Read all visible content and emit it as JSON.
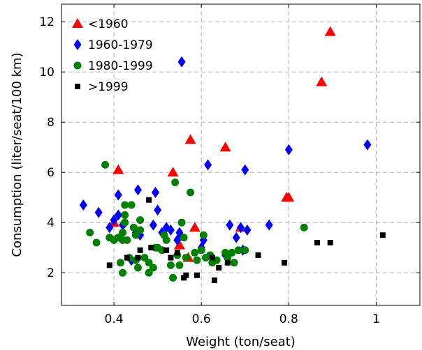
{
  "chart_data": {
    "type": "scatter",
    "title": "",
    "xlabel": "Weight (ton/seat)",
    "ylabel": "Consumption (liter/seat/100 km)",
    "xlim": [
      0.28,
      1.1
    ],
    "ylim": [
      0.7,
      12.7
    ],
    "xticks": [
      0.4,
      0.6,
      0.8,
      1.0
    ],
    "xtick_labels": [
      "0.4",
      "0.6",
      "0.8",
      "1"
    ],
    "yticks": [
      2,
      4,
      6,
      8,
      10,
      12
    ],
    "ytick_labels": [
      "2",
      "4",
      "6",
      "8",
      "10",
      "12"
    ],
    "grid": true,
    "legend_position": "top-left",
    "series": [
      {
        "name": "<1960",
        "marker": "triangle",
        "color": "#ff0000",
        "points": [
          [
            0.4,
            4.0
          ],
          [
            0.41,
            6.1
          ],
          [
            0.535,
            6.0
          ],
          [
            0.55,
            3.1
          ],
          [
            0.575,
            7.3
          ],
          [
            0.585,
            3.8
          ],
          [
            0.57,
            2.6
          ],
          [
            0.655,
            7.0
          ],
          [
            0.69,
            3.8
          ],
          [
            0.795,
            5.0
          ],
          [
            0.8,
            5.0
          ],
          [
            0.875,
            9.6
          ],
          [
            0.895,
            11.6
          ]
        ]
      },
      {
        "name": "1960-1979",
        "marker": "diamond",
        "color": "#0000ff",
        "points": [
          [
            0.33,
            4.7
          ],
          [
            0.365,
            4.4
          ],
          [
            0.39,
            3.8
          ],
          [
            0.4,
            4.1
          ],
          [
            0.41,
            5.1
          ],
          [
            0.41,
            4.3
          ],
          [
            0.42,
            3.9
          ],
          [
            0.425,
            4.0
          ],
          [
            0.44,
            2.5
          ],
          [
            0.45,
            3.6
          ],
          [
            0.455,
            5.3
          ],
          [
            0.46,
            3.5
          ],
          [
            0.49,
            3.9
          ],
          [
            0.495,
            5.2
          ],
          [
            0.5,
            4.5
          ],
          [
            0.51,
            3.6
          ],
          [
            0.52,
            3.8
          ],
          [
            0.53,
            3.7
          ],
          [
            0.545,
            3.3
          ],
          [
            0.55,
            3.6
          ],
          [
            0.555,
            10.4
          ],
          [
            0.6,
            3.0
          ],
          [
            0.605,
            3.3
          ],
          [
            0.615,
            6.3
          ],
          [
            0.655,
            2.7
          ],
          [
            0.665,
            3.9
          ],
          [
            0.68,
            3.4
          ],
          [
            0.69,
            3.8
          ],
          [
            0.695,
            2.9
          ],
          [
            0.7,
            6.1
          ],
          [
            0.705,
            3.7
          ],
          [
            0.755,
            3.9
          ],
          [
            0.8,
            6.9
          ],
          [
            0.98,
            7.1
          ]
        ]
      },
      {
        "name": "1980-1999",
        "marker": "circle",
        "color": "#008000",
        "points": [
          [
            0.345,
            3.6
          ],
          [
            0.36,
            3.2
          ],
          [
            0.38,
            6.3
          ],
          [
            0.39,
            3.4
          ],
          [
            0.4,
            3.3
          ],
          [
            0.41,
            3.4
          ],
          [
            0.415,
            2.4
          ],
          [
            0.42,
            2.0
          ],
          [
            0.42,
            3.3
          ],
          [
            0.42,
            3.6
          ],
          [
            0.425,
            4.0
          ],
          [
            0.425,
            4.3
          ],
          [
            0.425,
            4.7
          ],
          [
            0.43,
            3.3
          ],
          [
            0.435,
            2.6
          ],
          [
            0.44,
            4.7
          ],
          [
            0.445,
            3.8
          ],
          [
            0.45,
            2.5
          ],
          [
            0.45,
            3.5
          ],
          [
            0.455,
            2.2
          ],
          [
            0.46,
            4.1
          ],
          [
            0.46,
            3.7
          ],
          [
            0.47,
            2.6
          ],
          [
            0.48,
            2.4
          ],
          [
            0.48,
            2.0
          ],
          [
            0.49,
            2.2
          ],
          [
            0.495,
            3.0
          ],
          [
            0.5,
            3.0
          ],
          [
            0.51,
            2.9
          ],
          [
            0.515,
            3.5
          ],
          [
            0.52,
            3.3
          ],
          [
            0.53,
            2.3
          ],
          [
            0.535,
            1.8
          ],
          [
            0.54,
            5.6
          ],
          [
            0.545,
            2.7
          ],
          [
            0.55,
            2.3
          ],
          [
            0.555,
            4.0
          ],
          [
            0.56,
            3.4
          ],
          [
            0.565,
            2.6
          ],
          [
            0.575,
            5.2
          ],
          [
            0.585,
            2.8
          ],
          [
            0.59,
            2.5
          ],
          [
            0.6,
            2.9
          ],
          [
            0.605,
            3.5
          ],
          [
            0.61,
            2.6
          ],
          [
            0.62,
            2.7
          ],
          [
            0.625,
            2.4
          ],
          [
            0.635,
            2.5
          ],
          [
            0.655,
            2.8
          ],
          [
            0.66,
            2.6
          ],
          [
            0.67,
            2.8
          ],
          [
            0.675,
            2.4
          ],
          [
            0.685,
            2.9
          ],
          [
            0.7,
            2.9
          ],
          [
            0.835,
            3.8
          ]
        ]
      },
      {
        "name": ">1999",
        "marker": "square",
        "color": "#000000",
        "points": [
          [
            0.39,
            2.3
          ],
          [
            0.43,
            2.6
          ],
          [
            0.455,
            2.6
          ],
          [
            0.46,
            2.9
          ],
          [
            0.48,
            4.9
          ],
          [
            0.485,
            3.0
          ],
          [
            0.52,
            2.9
          ],
          [
            0.53,
            2.6
          ],
          [
            0.545,
            2.8
          ],
          [
            0.56,
            1.8
          ],
          [
            0.565,
            1.9
          ],
          [
            0.59,
            1.9
          ],
          [
            0.625,
            2.6
          ],
          [
            0.63,
            1.7
          ],
          [
            0.64,
            2.2
          ],
          [
            0.66,
            2.4
          ],
          [
            0.73,
            2.7
          ],
          [
            0.79,
            2.4
          ],
          [
            0.865,
            3.2
          ],
          [
            0.895,
            3.2
          ],
          [
            1.015,
            3.5
          ]
        ]
      }
    ]
  }
}
